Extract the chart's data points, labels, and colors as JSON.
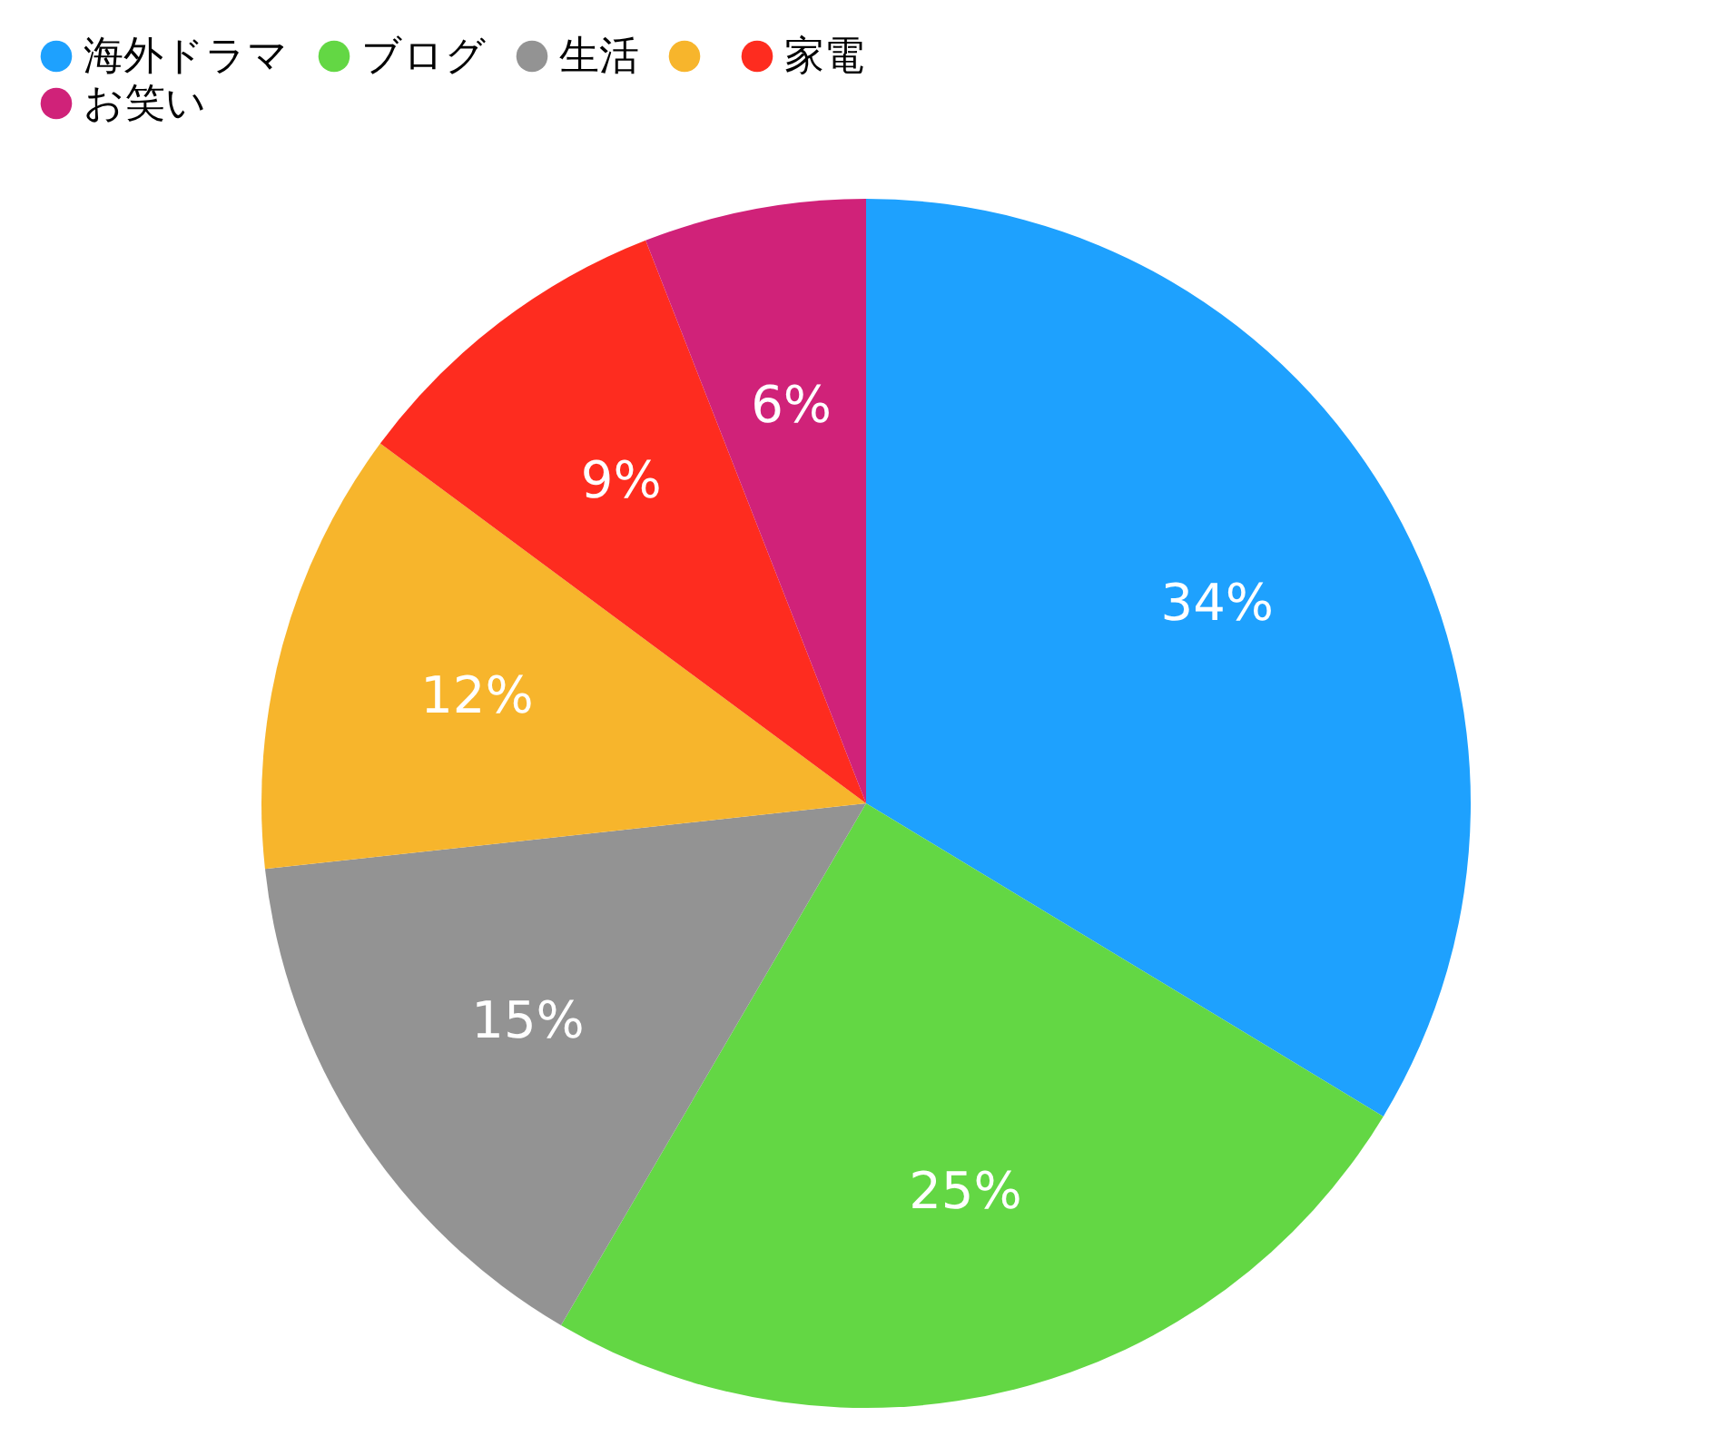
{
  "chart_data": {
    "type": "pie",
    "categories": [
      "海外ドラマ",
      "ブログ",
      "生活",
      null,
      "家電",
      "お笑い"
    ],
    "values": [
      34,
      25,
      15,
      12,
      9,
      6
    ],
    "colors": [
      "#1ea1fe",
      "#63d744",
      "#939393",
      "#f7b52c",
      "#fe2c1f",
      "#d02279"
    ],
    "value_labels": [
      "34%",
      "25%",
      "15%",
      "12%",
      "9%",
      "6%"
    ],
    "legend": "top left"
  }
}
